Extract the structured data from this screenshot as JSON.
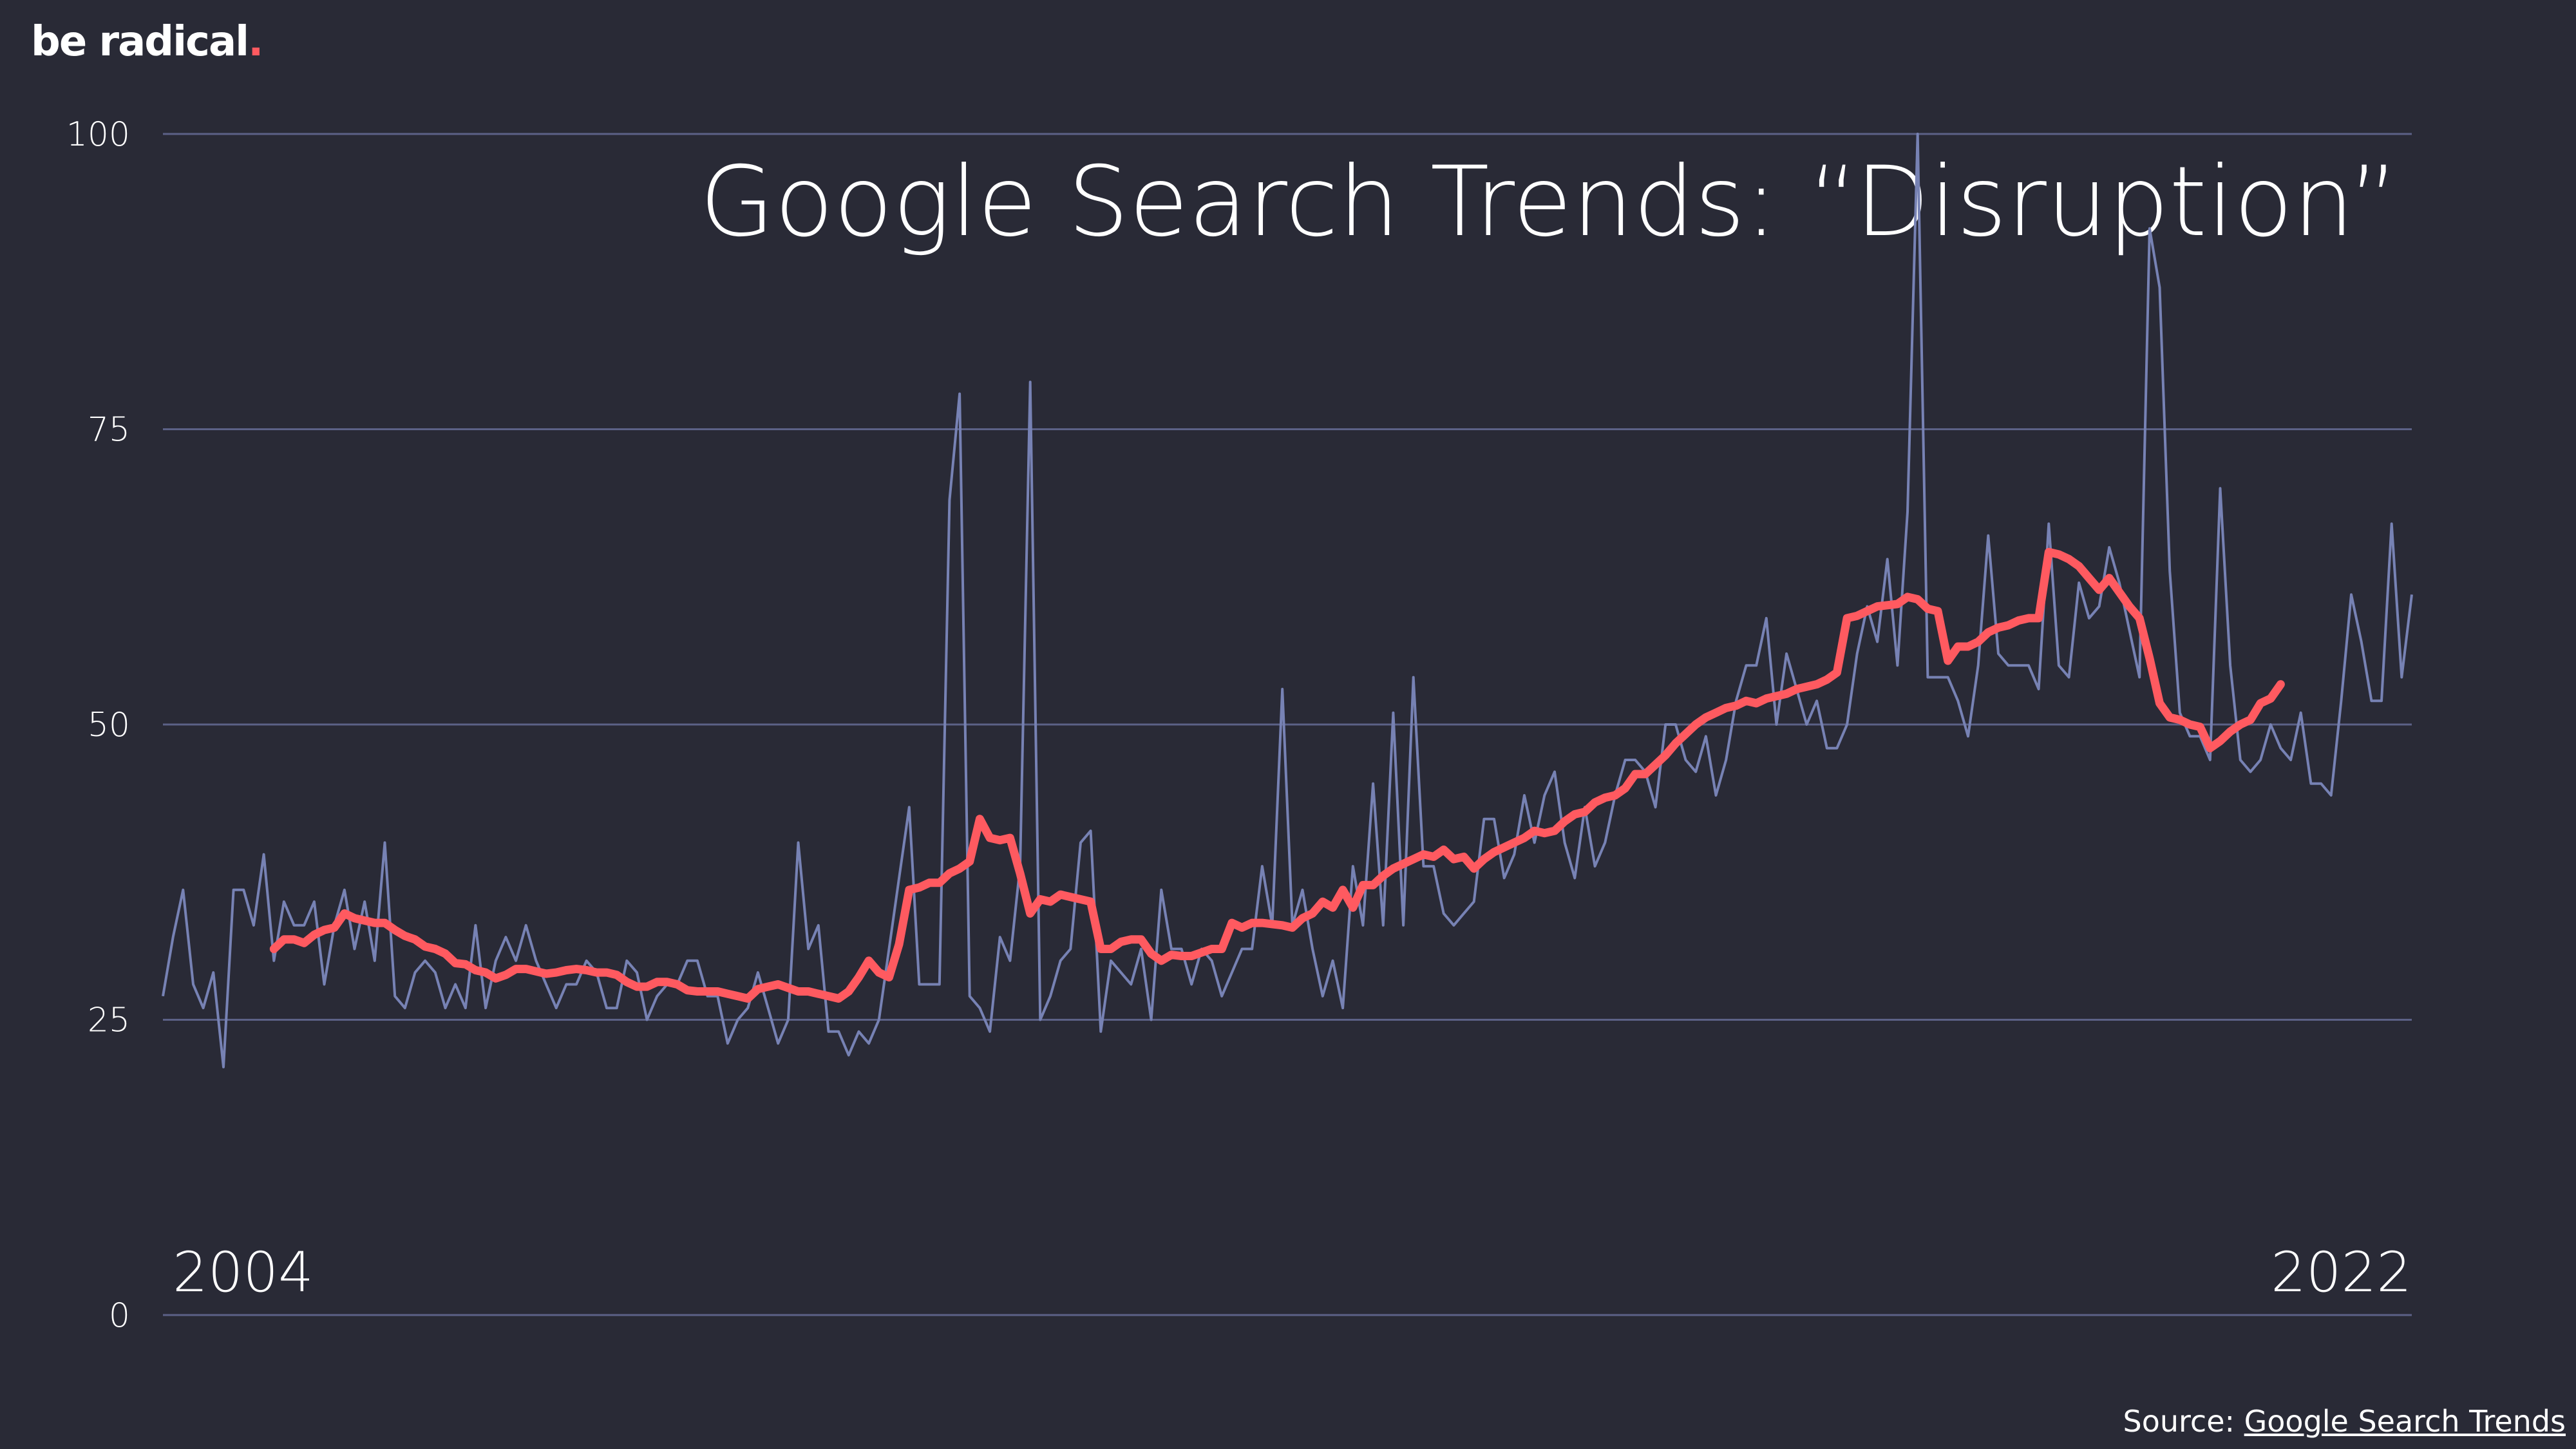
{
  "brand": {
    "text": "be radical",
    "dot": "."
  },
  "source": {
    "prefix": "Source: ",
    "link_text": "Google Search Trends"
  },
  "colors": {
    "background": "#292a36",
    "grid": "#5c6187",
    "raw_series": "#7782b4",
    "trend_series": "#ff5a60",
    "text": "#ffffff"
  },
  "chart_data": {
    "type": "line",
    "title": "Google Search Trends: “Disruption”",
    "ylim": [
      0,
      100
    ],
    "yticks": [
      0,
      25,
      50,
      75,
      100
    ],
    "xlim": [
      2004,
      2022
    ],
    "x_start_label": "2004",
    "x_end_label": "2022",
    "grid": true,
    "series": [
      {
        "role": "monthly",
        "values": [
          27,
          32,
          36,
          28,
          26,
          29,
          21,
          36,
          36,
          33,
          39,
          30,
          35,
          33,
          33,
          35,
          28,
          33,
          36,
          31,
          35,
          30,
          40,
          27,
          26,
          29,
          30,
          29,
          26,
          28,
          26,
          33,
          26,
          30,
          32,
          30,
          33,
          30,
          28,
          26,
          28,
          28,
          30,
          29,
          26,
          26,
          30,
          29,
          25,
          27,
          28,
          28,
          30,
          30,
          27,
          27,
          23,
          25,
          26,
          29,
          26,
          23,
          25,
          40,
          31,
          33,
          24,
          24,
          22,
          24,
          23,
          25,
          31,
          37,
          43,
          28,
          28,
          28,
          69,
          78,
          27,
          26,
          24,
          32,
          30,
          38,
          79,
          25,
          27,
          30,
          31,
          40,
          41,
          24,
          30,
          29,
          28,
          31,
          25,
          36,
          31,
          31,
          28,
          31,
          30,
          27,
          29,
          31,
          31,
          38,
          33,
          53,
          33,
          36,
          31,
          27,
          30,
          26,
          38,
          33,
          45,
          33,
          51,
          33,
          54,
          38,
          38,
          34,
          33,
          34,
          35,
          42,
          42,
          37,
          39,
          44,
          40,
          44,
          46,
          40,
          37,
          43,
          38,
          40,
          44,
          47,
          47,
          46,
          43,
          50,
          50,
          47,
          46,
          49,
          44,
          47,
          52,
          55,
          55,
          59,
          50,
          56,
          53,
          50,
          52,
          48,
          48,
          50,
          56,
          60,
          57,
          64,
          55,
          68,
          100,
          54,
          54,
          54,
          52,
          49,
          55,
          66,
          56,
          55,
          55,
          55,
          53,
          67,
          55,
          54,
          62,
          59,
          60,
          65,
          62,
          58,
          54,
          92,
          87,
          63,
          51,
          49,
          49,
          47,
          70,
          55,
          47,
          46,
          47,
          50,
          48,
          47,
          51,
          45,
          45,
          44,
          52,
          61,
          57,
          52,
          52,
          67,
          54,
          61
        ]
      },
      {
        "role": "trend",
        "values": [
          31,
          31.8,
          31.8,
          31.5,
          32.2,
          32.6,
          32.8,
          34,
          33.6,
          33.4,
          33.2,
          33.2,
          32.6,
          32.1,
          31.8,
          31.2,
          31,
          30.6,
          29.8,
          29.7,
          29.2,
          29,
          28.5,
          28.8,
          29.3,
          29.3,
          29.1,
          28.9,
          29,
          29.2,
          29.3,
          29.2,
          29,
          29,
          28.8,
          28.2,
          27.8,
          27.8,
          28.2,
          28.2,
          28,
          27.5,
          27.4,
          27.4,
          27.4,
          27.2,
          27,
          26.8,
          27.6,
          27.8,
          28,
          27.7,
          27.4,
          27.4,
          27.2,
          27,
          26.8,
          27.4,
          28.6,
          30,
          29,
          28.6,
          31.4,
          36,
          36.2,
          36.6,
          36.6,
          37.4,
          37.8,
          38.4,
          42,
          40.4,
          40.2,
          40.4,
          37.4,
          34,
          35.2,
          35,
          35.6,
          35.4,
          35.2,
          35,
          31,
          31,
          31.6,
          31.8,
          31.8,
          30.6,
          30,
          30.5,
          30.4,
          30.4,
          30.7,
          31,
          31,
          33.2,
          32.8,
          33.2,
          33.2,
          33.1,
          33,
          32.8,
          33.6,
          34,
          35,
          34.5,
          36,
          34.5,
          36.4,
          36.4,
          37.2,
          37.8,
          38.2,
          38.6,
          39,
          38.8,
          39.4,
          38.6,
          38.8,
          37.8,
          38.6,
          39.2,
          39.6,
          40,
          40.4,
          41,
          40.8,
          41,
          41.8,
          42.4,
          42.6,
          43.4,
          43.8,
          44,
          44.6,
          45.8,
          45.8,
          46.6,
          47.4,
          48.4,
          49.2,
          50,
          50.6,
          51,
          51.4,
          51.6,
          52,
          51.8,
          52.2,
          52.4,
          52.6,
          53,
          53.2,
          53.4,
          53.8,
          54.4,
          59,
          59.2,
          59.6,
          60,
          60.1,
          60.2,
          60.8,
          60.6,
          59.8,
          59.6,
          55.4,
          56.6,
          56.6,
          57,
          57.8,
          58.2,
          58.4,
          58.8,
          59,
          59,
          64.6,
          64.4,
          64,
          63.4,
          62.4,
          61.4,
          62.4,
          61.2,
          60,
          59,
          55.6,
          51.8,
          50.6,
          50.4,
          50,
          49.8,
          48,
          48.6,
          49.4,
          50,
          50.4,
          51.8,
          52.2,
          53.4
        ]
      }
    ]
  }
}
